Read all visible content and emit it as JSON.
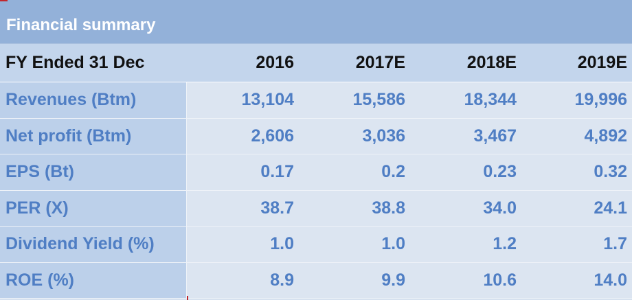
{
  "table": {
    "title": "Financial summary",
    "header": {
      "label": "FY Ended 31 Dec",
      "years": [
        "2016",
        "2017E",
        "2018E",
        "2019E"
      ]
    },
    "rows": [
      {
        "label": "Revenues (Btm)",
        "values": [
          "13,104",
          "15,586",
          "18,344",
          "19,996"
        ]
      },
      {
        "label": "Net profit (Btm)",
        "values": [
          "2,606",
          "3,036",
          "3,467",
          "4,892"
        ]
      },
      {
        "label": "EPS (Bt)",
        "values": [
          "0.17",
          "0.2",
          "0.23",
          "0.32"
        ]
      },
      {
        "label": "PER (X)",
        "values": [
          "38.7",
          "38.8",
          "34.0",
          "24.1"
        ]
      },
      {
        "label": "Dividend Yield (%)",
        "values": [
          "1.0",
          "1.0",
          "1.2",
          "1.7"
        ]
      },
      {
        "label": "ROE (%)",
        "values": [
          "8.9",
          "9.9",
          "10.6",
          "14.0"
        ]
      }
    ]
  }
}
